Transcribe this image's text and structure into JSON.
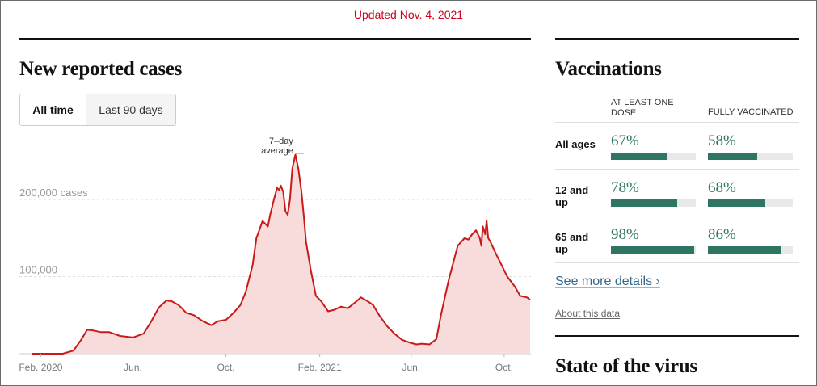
{
  "updated": "Updated Nov. 4, 2021",
  "cases": {
    "title": "New reported cases",
    "toggle": {
      "all_time": "All time",
      "last_90": "Last 90 days"
    }
  },
  "colors": {
    "line": "#c91a1a",
    "area": "#f8dcdc",
    "bar": "#2e7563",
    "accent": "#d0021b"
  },
  "chart_data": {
    "type": "area",
    "title": "New reported cases",
    "y_tick_labels": [
      "100,000",
      "200,000 cases"
    ],
    "y_ticks": [
      100000,
      200000
    ],
    "ylim": [
      0,
      265000
    ],
    "x_tick_labels": [
      "Feb. 2020",
      "Jun.",
      "Oct.",
      "Feb. 2021",
      "Jun.",
      "Oct."
    ],
    "x_ticks": [
      "2020-02-01",
      "2020-06-01",
      "2020-10-01",
      "2021-02-01",
      "2021-06-01",
      "2021-10-01"
    ],
    "xlim": [
      "2020-01-21",
      "2021-11-04"
    ],
    "grid": true,
    "annotation": {
      "lines": [
        "7–day",
        "average"
      ],
      "x": "2021-01-11",
      "y": 262000
    },
    "series": [
      {
        "x": [
          "2020-01-21",
          "2020-03-01",
          "2020-03-15",
          "2020-03-25",
          "2020-04-02",
          "2020-04-10",
          "2020-04-20",
          "2020-05-01",
          "2020-05-15",
          "2020-06-01",
          "2020-06-15",
          "2020-06-25",
          "2020-07-05",
          "2020-07-15",
          "2020-07-22",
          "2020-07-31",
          "2020-08-10",
          "2020-08-20",
          "2020-09-01",
          "2020-09-12",
          "2020-09-20",
          "2020-10-01",
          "2020-10-10",
          "2020-10-20",
          "2020-10-27",
          "2020-11-05",
          "2020-11-10",
          "2020-11-18",
          "2020-11-25",
          "2020-11-28",
          "2020-12-03",
          "2020-12-07",
          "2020-12-10",
          "2020-12-12",
          "2020-12-15",
          "2020-12-18",
          "2020-12-21",
          "2020-12-24",
          "2020-12-27",
          "2020-12-31",
          "2021-01-04",
          "2021-01-08",
          "2021-01-11",
          "2021-01-14",
          "2021-01-20",
          "2021-01-27",
          "2021-02-03",
          "2021-02-12",
          "2021-02-20",
          "2021-03-01",
          "2021-03-10",
          "2021-03-20",
          "2021-03-27",
          "2021-04-05",
          "2021-04-12",
          "2021-04-20",
          "2021-05-01",
          "2021-05-10",
          "2021-05-20",
          "2021-05-31",
          "2021-06-08",
          "2021-06-15",
          "2021-06-25",
          "2021-07-04",
          "2021-07-10",
          "2021-07-20",
          "2021-08-01",
          "2021-08-10",
          "2021-08-15",
          "2021-08-20",
          "2021-08-25",
          "2021-08-30",
          "2021-09-01",
          "2021-09-03",
          "2021-09-06",
          "2021-09-08",
          "2021-09-10",
          "2021-09-13",
          "2021-09-20",
          "2021-09-30",
          "2021-10-05",
          "2021-10-15",
          "2021-10-22",
          "2021-10-31",
          "2021-11-04"
        ],
        "y": [
          0,
          0,
          4000,
          18000,
          31000,
          30000,
          28000,
          28000,
          23000,
          21000,
          26000,
          42000,
          60000,
          69000,
          68000,
          63000,
          53000,
          50000,
          42000,
          37000,
          42000,
          44000,
          52000,
          63000,
          80000,
          115000,
          150000,
          172000,
          165000,
          180000,
          200000,
          215000,
          212000,
          218000,
          210000,
          185000,
          180000,
          200000,
          240000,
          258000,
          240000,
          210000,
          180000,
          145000,
          110000,
          75000,
          68000,
          55000,
          57000,
          61000,
          59000,
          67000,
          73000,
          68000,
          63000,
          50000,
          35000,
          26000,
          18000,
          14000,
          12000,
          13000,
          12000,
          19000,
          50000,
          95000,
          140000,
          150000,
          148000,
          155000,
          160000,
          150000,
          140000,
          165000,
          155000,
          172000,
          150000,
          145000,
          130000,
          110000,
          100000,
          87000,
          75000,
          73000,
          70000
        ]
      }
    ]
  },
  "vaccinations": {
    "title": "Vaccinations",
    "col1_header": "AT LEAST ONE DOSE",
    "col2_header": "FULLY VACCINATED",
    "rows": [
      {
        "label": "All ages",
        "dose1": "67%",
        "dose1_value": 0.67,
        "full": "58%",
        "full_value": 0.58
      },
      {
        "label": "12 and up",
        "dose1": "78%",
        "dose1_value": 0.78,
        "full": "68%",
        "full_value": 0.68
      },
      {
        "label": "65 and up",
        "dose1": "98%",
        "dose1_value": 0.98,
        "full": "86%",
        "full_value": 0.86
      }
    ],
    "see_more": "See more details ›",
    "about": "About this data"
  },
  "state_title": "State of the virus"
}
